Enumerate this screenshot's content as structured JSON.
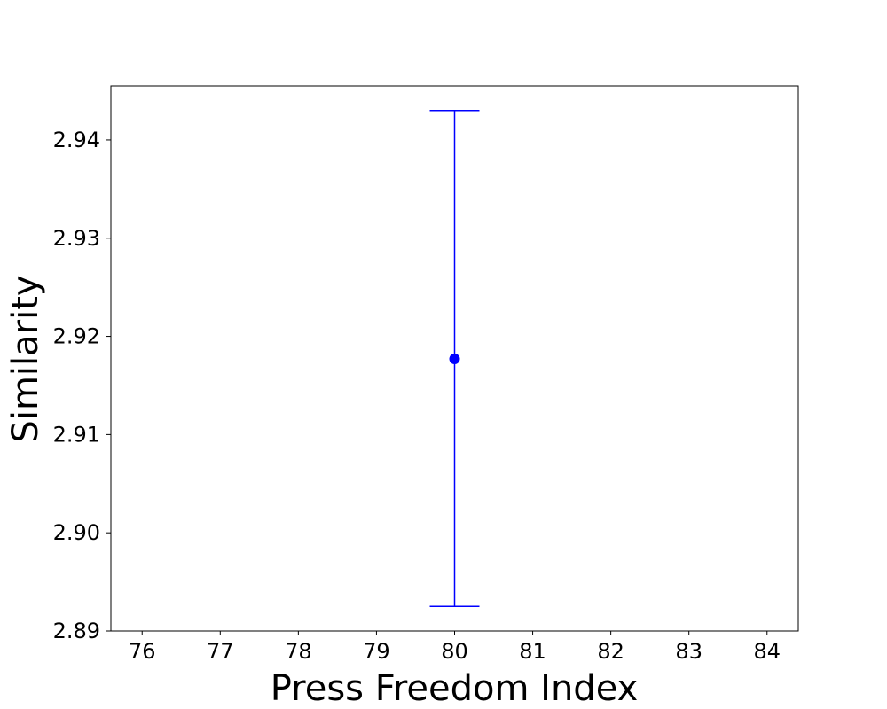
{
  "chart_data": {
    "type": "scatter",
    "title": "",
    "xlabel": "Press Freedom Index",
    "ylabel": "Similarity",
    "xlim": [
      75.6,
      84.4
    ],
    "ylim": [
      2.89,
      2.9455
    ],
    "xticks": [
      76,
      77,
      78,
      79,
      80,
      81,
      82,
      83,
      84
    ],
    "xtick_labels": [
      "76",
      "77",
      "78",
      "79",
      "80",
      "81",
      "82",
      "83",
      "84"
    ],
    "yticks": [
      2.89,
      2.9,
      2.91,
      2.92,
      2.93,
      2.94
    ],
    "ytick_labels": [
      "2.89",
      "2.90",
      "2.91",
      "2.92",
      "2.93",
      "2.94"
    ],
    "grid": false,
    "series": [
      {
        "color": "#0000ff",
        "points": [
          {
            "x": 80,
            "y": 2.9177,
            "y_lower": 2.8925,
            "y_upper": 2.943
          }
        ]
      }
    ]
  }
}
